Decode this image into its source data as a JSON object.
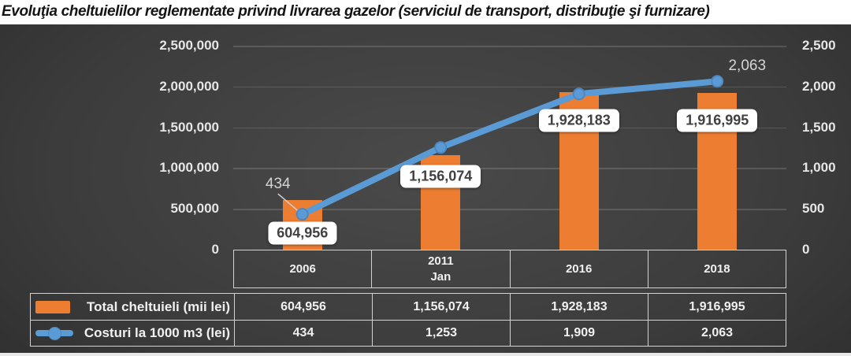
{
  "title": "Evoluţia cheltuielilor reglementate privind livrarea gazelor (serviciul de transport, distribuţie şi furnizare)",
  "colors": {
    "bar": "#ED7D31",
    "line": "#5B9BD5",
    "line_marker_edge": "#4d87c0",
    "label_box_bg": "#FEFEFE",
    "label_box_text": "#404040",
    "axis_text": "#E6E6E6",
    "point_label_text": "#D4D4D4",
    "table_border": "#D2D2D2",
    "leader_line": "#CFCFCF"
  },
  "chart_data": {
    "type": "combo",
    "title": "Evoluţia cheltuielilor reglementate privind livrarea gazelor (serviciul de transport, distribuţie şi furnizare)",
    "categories": [
      "2006",
      "2011 Jan",
      "2016",
      "2018"
    ],
    "series": [
      {
        "name": "Total cheltuieli (mii lei)",
        "type": "bar",
        "axis": "left",
        "color": "#ED7D31",
        "values": [
          604956,
          1156074,
          1928183,
          1916995
        ],
        "labels": [
          "604,956",
          "1,156,074",
          "1,928,183",
          "1,916,995"
        ]
      },
      {
        "name": "Costuri la 1000 m3 (lei)",
        "type": "line",
        "axis": "right",
        "color": "#5B9BD5",
        "values": [
          434,
          1253,
          1909,
          2063
        ],
        "labels": [
          "434",
          "1,253",
          "1,909",
          "2,063"
        ],
        "shown_point_label_indices": [
          0,
          3
        ]
      }
    ],
    "left_axis": {
      "min": 0,
      "max": 2500000,
      "ticks": [
        "2,500,000",
        "2,000,000",
        "1,500,000",
        "1,000,000",
        "500,000",
        "0"
      ]
    },
    "right_axis": {
      "min": 0,
      "max": 2500,
      "ticks": [
        "2,500",
        "2,000",
        "1,500",
        "1,000",
        "500",
        "0"
      ]
    },
    "grid": true,
    "legend_position": "data-table-left"
  },
  "table": {
    "year_headers": [
      "2006",
      "2011\nJan",
      "2016",
      "2018"
    ],
    "rows": [
      {
        "legend": "Total cheltuieli (mii lei)",
        "swatch": "bar",
        "values": [
          "604,956",
          "1,156,074",
          "1,928,183",
          "1,916,995"
        ]
      },
      {
        "legend": "Costuri la 1000 m3 (lei)",
        "swatch": "line",
        "values": [
          "434",
          "1,253",
          "1,909",
          "2,063"
        ]
      }
    ]
  }
}
